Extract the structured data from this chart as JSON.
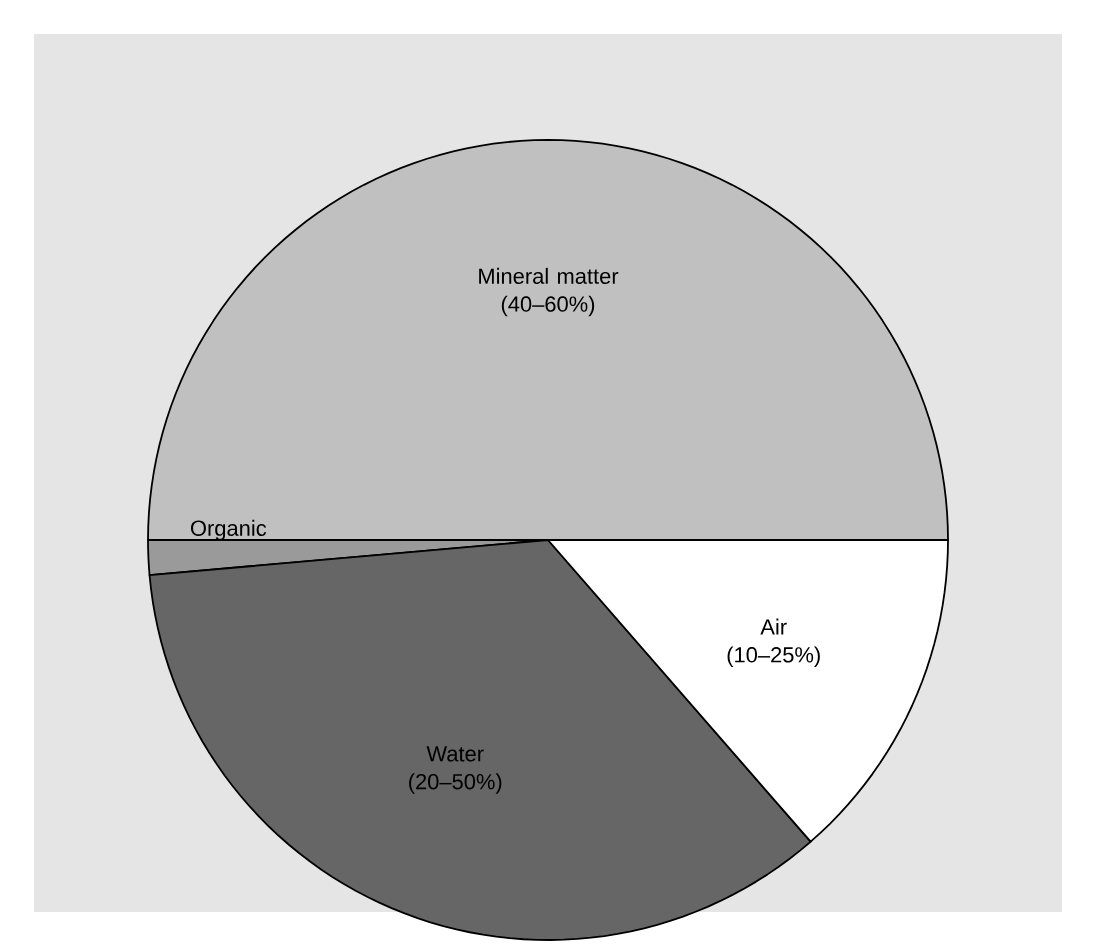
{
  "chart_data": {
    "type": "pie",
    "categories": [
      "Mineral matter (40–60%)",
      "Organic",
      "Water (20–50%)",
      "Air (10–25%)"
    ],
    "values": [
      50,
      1.4,
      35,
      13.6
    ],
    "colors": [
      "#c0c0c0",
      "#9a9a9a",
      "#666666",
      "#ffffff"
    ]
  }
}
